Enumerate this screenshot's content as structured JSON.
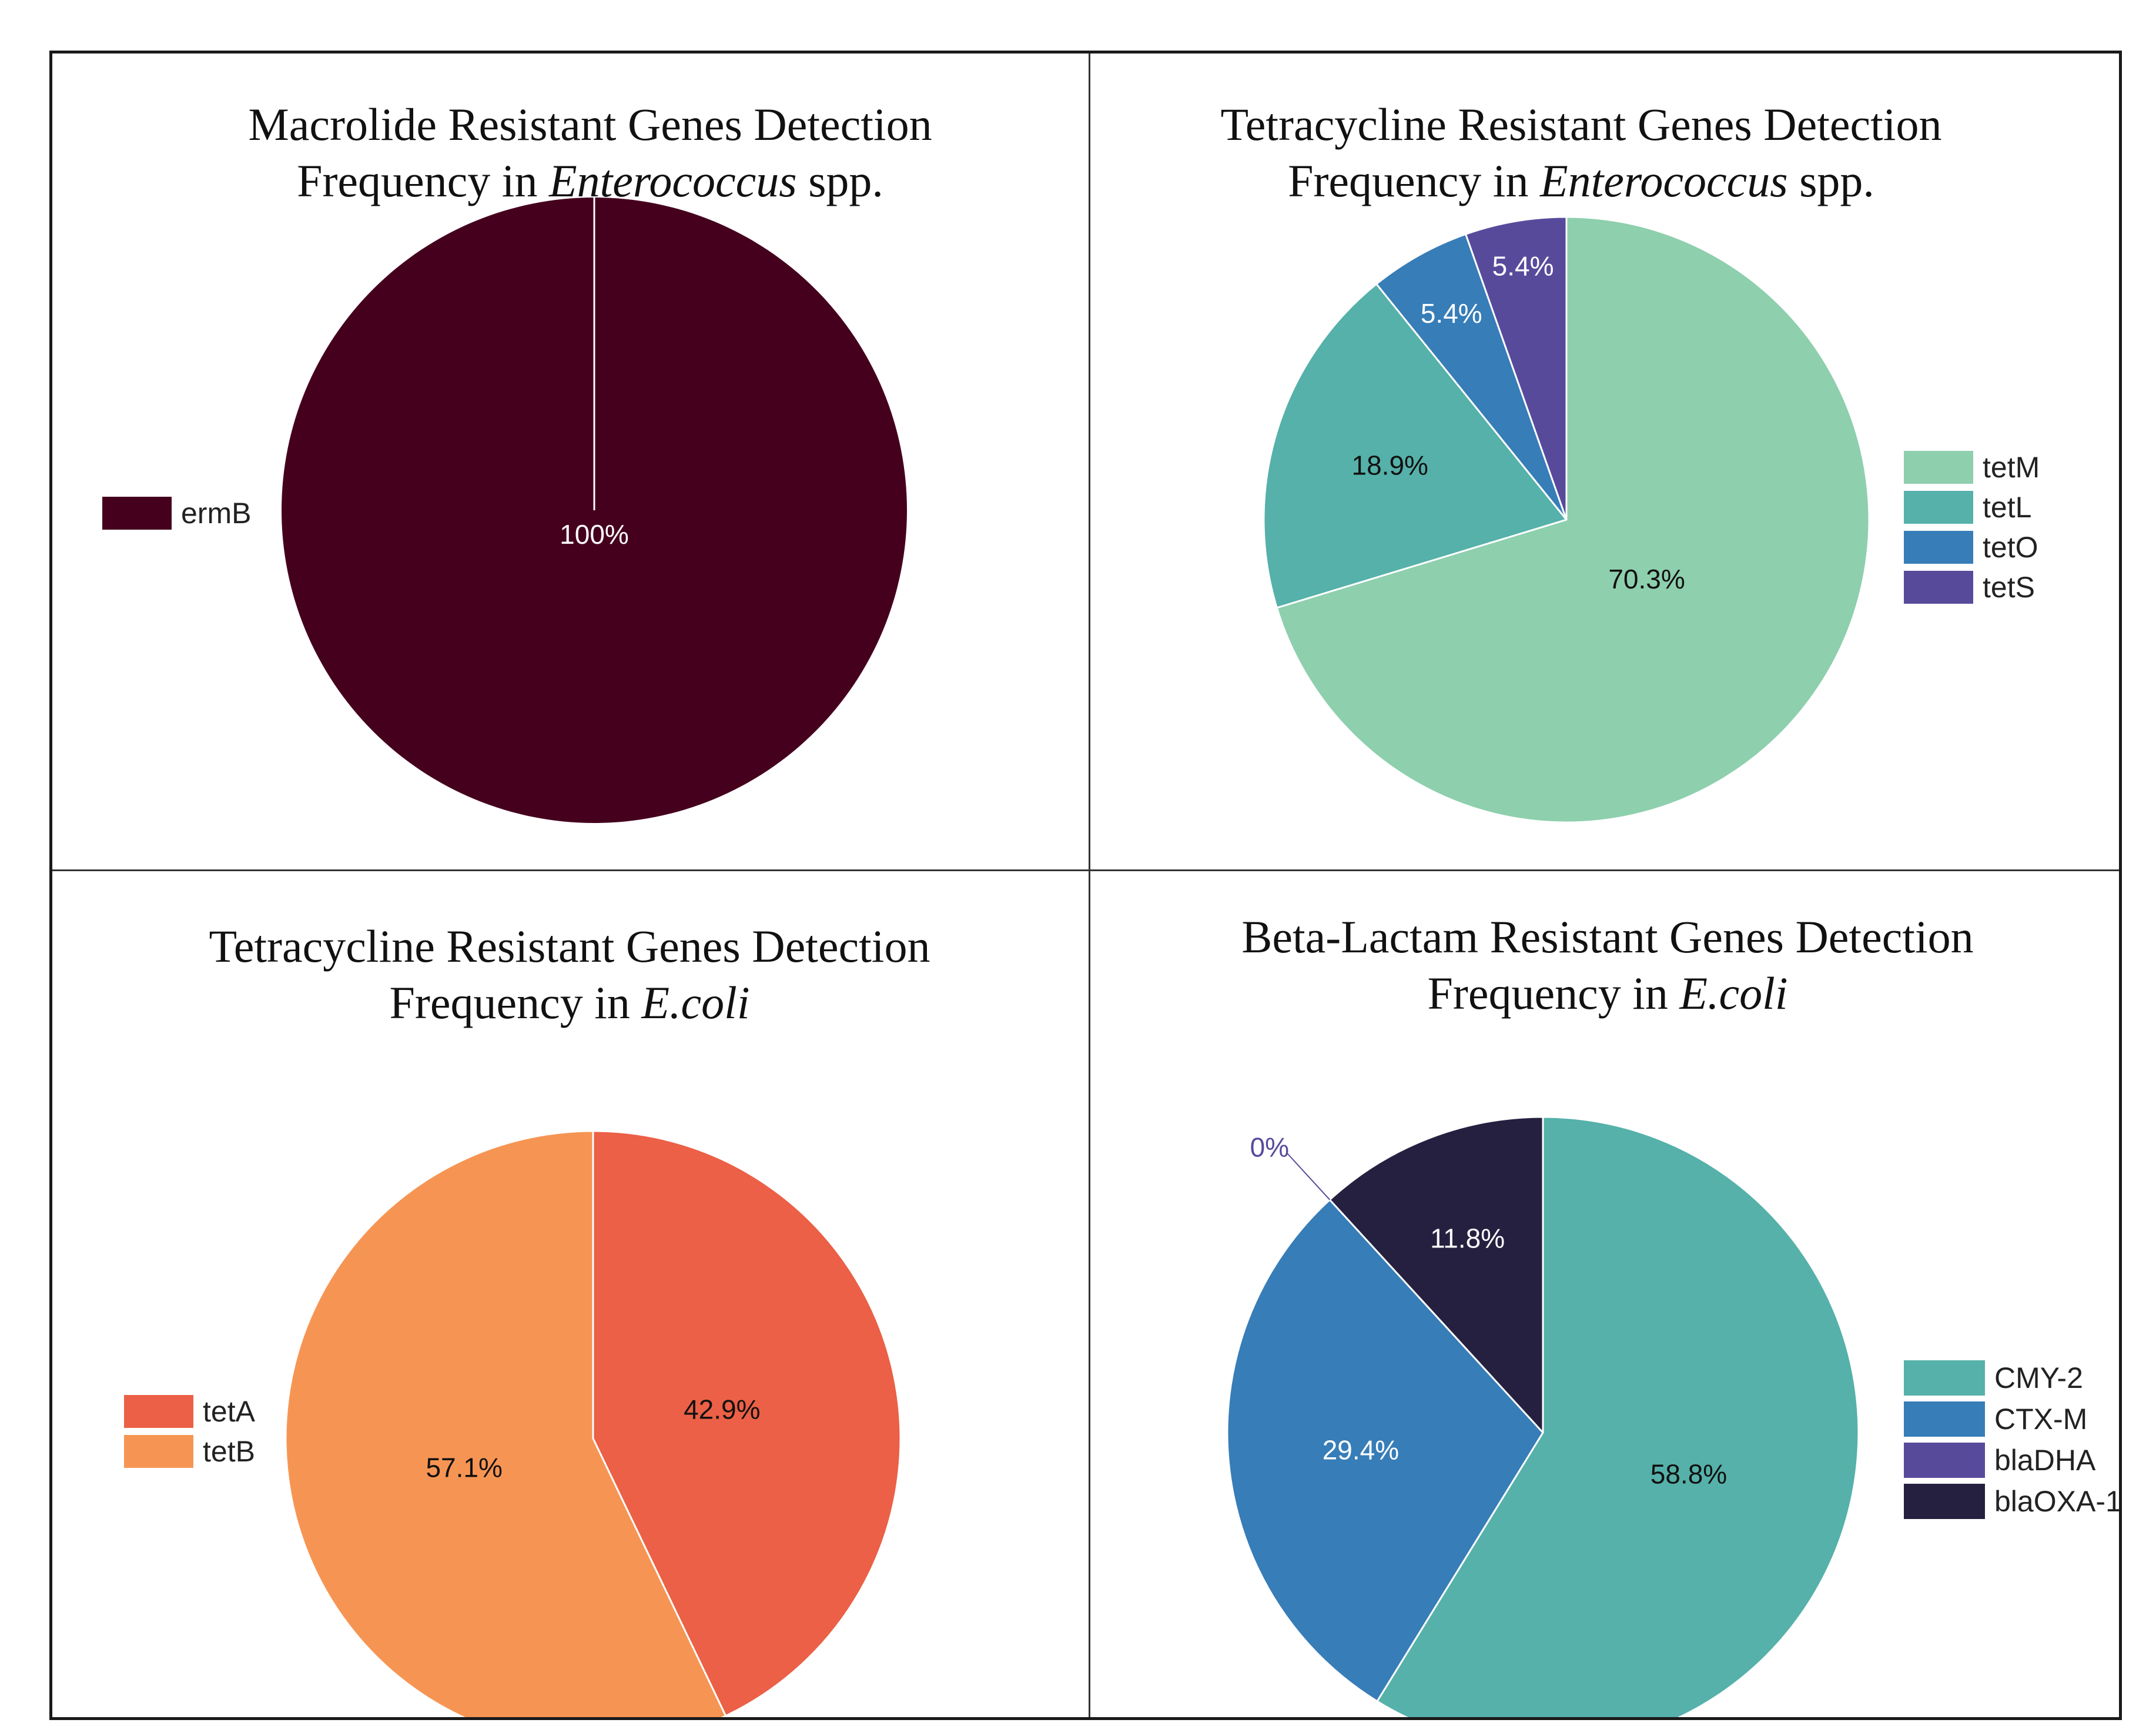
{
  "chart_data": [
    {
      "type": "pie",
      "title_line1": "Macrolide Resistant Genes Detection",
      "title_line2_prefix": "Frequency in ",
      "title_line2_italic": "Enterococcus",
      "title_line2_suffix": " spp.",
      "slices": [
        {
          "label": "ermB",
          "value": 100,
          "display": "100%",
          "color": "#45001d",
          "text_color": "#ffffff"
        }
      ],
      "legend_position": "left"
    },
    {
      "type": "pie",
      "title_line1": "Tetracycline Resistant Genes Detection",
      "title_line2_prefix": "Frequency in ",
      "title_line2_italic": "Enterococcus",
      "title_line2_suffix": " spp.",
      "slices": [
        {
          "label": "tetM",
          "value": 70.3,
          "display": "70.3%",
          "color": "#8ecfad",
          "text_color": "#111111"
        },
        {
          "label": "tetL",
          "value": 18.9,
          "display": "18.9%",
          "color": "#55b1a9",
          "text_color": "#111111"
        },
        {
          "label": "tetO",
          "value": 5.4,
          "display": "5.4%",
          "color": "#377db8",
          "text_color": "#ffffff"
        },
        {
          "label": "tetS",
          "value": 5.4,
          "display": "5.4%",
          "color": "#584a9b",
          "text_color": "#ffffff"
        }
      ],
      "legend_position": "right"
    },
    {
      "type": "pie",
      "title_line1": "Tetracycline Resistant Genes Detection",
      "title_line2_prefix": "Frequency in ",
      "title_line2_italic": "E.coli",
      "title_line2_suffix": "",
      "slices": [
        {
          "label": "tetA",
          "value": 42.9,
          "display": "42.9%",
          "color": "#eb6046",
          "text_color": "#111111"
        },
        {
          "label": "tetB",
          "value": 57.1,
          "display": "57.1%",
          "color": "#f69553",
          "text_color": "#111111"
        }
      ],
      "legend_position": "left"
    },
    {
      "type": "pie",
      "title_line1": "Beta-Lactam Resistant Genes Detection",
      "title_line2_prefix": "Frequency in ",
      "title_line2_italic": "E.coli",
      "title_line2_suffix": "",
      "slices": [
        {
          "label": "CMY-2",
          "value": 58.8,
          "display": "58.8%",
          "color": "#55b1a9",
          "text_color": "#111111"
        },
        {
          "label": "CTX-M",
          "value": 29.4,
          "display": "29.4%",
          "color": "#377db8",
          "text_color": "#ffffff"
        },
        {
          "label": "blaDHA",
          "value": 0,
          "display": "0%",
          "color": "#584a9b",
          "text_color": "#584a9b"
        },
        {
          "label": "blaOXA-1",
          "value": 11.8,
          "display": "11.8%",
          "color": "#262040",
          "text_color": "#ffffff"
        }
      ],
      "legend_position": "right"
    }
  ]
}
